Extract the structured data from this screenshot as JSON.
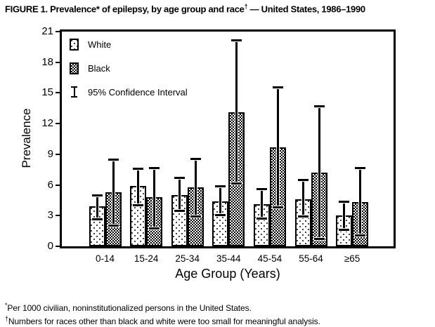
{
  "colors": {
    "foreground": "#000000",
    "background": "#ffffff"
  },
  "figure": {
    "title_main": "FIGURE 1. Prevalence* of epilepsy, by age group and race",
    "title_sup": "†",
    "title_tail": " — United States, 1986–1990"
  },
  "footnotes": [
    {
      "sup": "*",
      "text": "Per 1000 civilian, noninstitutionalized persons in the United States."
    },
    {
      "sup": "†",
      "text": "Numbers for races other than black and white were too small for meaningful analysis."
    }
  ],
  "chart_data": {
    "type": "bar",
    "title": "Prevalence of epilepsy, by age group and race — United States, 1986–1990",
    "categories": [
      "0-14",
      "15-24",
      "25-34",
      "35-44",
      "45-54",
      "55-64",
      "≥65"
    ],
    "xlabel": "Age Group (Years)",
    "ylabel": "Prevalence",
    "ylim": [
      0,
      21
    ],
    "yticks": [
      0,
      3,
      6,
      9,
      12,
      15,
      18,
      21
    ],
    "grid": false,
    "legend_position": "upper-left-inside",
    "legend": [
      {
        "label": "White",
        "pattern": "white-dotted"
      },
      {
        "label": "Black",
        "pattern": "black-checkered"
      },
      {
        "label": "95% Confidence Interval",
        "pattern": "error-bar"
      }
    ],
    "series": [
      {
        "name": "White",
        "values": [
          3.9,
          5.9,
          5.0,
          4.4,
          4.1,
          4.6,
          3.0
        ],
        "ci_low": [
          2.6,
          4.0,
          3.4,
          3.0,
          2.7,
          2.9,
          1.6
        ],
        "ci_high": [
          5.0,
          7.6,
          6.7,
          5.9,
          5.6,
          6.5,
          4.4
        ]
      },
      {
        "name": "Black",
        "values": [
          5.3,
          4.8,
          5.8,
          13.1,
          9.7,
          7.2,
          4.3
        ],
        "ci_low": [
          2.0,
          1.7,
          2.9,
          6.1,
          3.8,
          0.7,
          1.0
        ],
        "ci_high": [
          8.5,
          7.7,
          8.6,
          20.2,
          15.6,
          13.7,
          7.7
        ]
      }
    ]
  }
}
